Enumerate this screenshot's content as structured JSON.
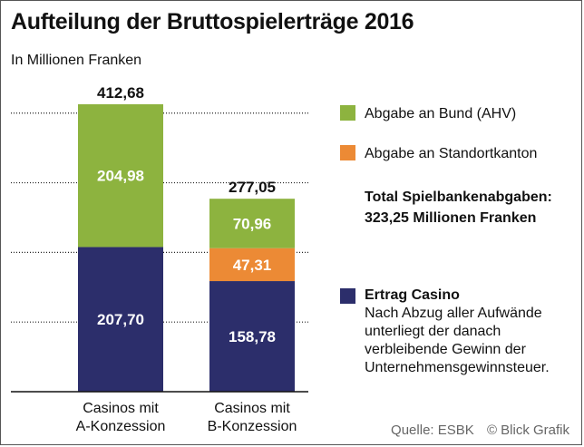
{
  "title": "Aufteilung der Bruttospielerträge 2016",
  "subtitle": "In Millionen Franken",
  "legend": {
    "bund": "Abgabe an Bund (AHV)",
    "kanton": "Abgabe an Standortkanton",
    "casino_title": "Ertrag Casino",
    "casino_desc": [
      "Nach Abzug aller Aufwände",
      "unterliegt der danach",
      "verbleibende Gewinn der",
      "Unternehmensgewinnsteuer."
    ]
  },
  "total": {
    "line1": "Total Spielbankenabgaben:",
    "line2": "323,25 Millionen Franken"
  },
  "source": {
    "text": "Quelle: ESBK",
    "credit": "© Blick Grafik"
  },
  "colors": {
    "bund": "#8db33f",
    "kanton": "#ec8a35",
    "casino": "#2c2e6b",
    "grid": "#222222"
  },
  "chart_data": {
    "type": "bar",
    "stacked": true,
    "title": "Aufteilung der Bruttospielerträge 2016",
    "ylabel": "In Millionen Franken",
    "categories": [
      "Casinos mit\nA-Konzession",
      "Casinos mit\nB-Konzession"
    ],
    "totals": [
      "412,68",
      "277,05"
    ],
    "ylim": [
      0,
      450
    ],
    "series": [
      {
        "name": "Ertrag Casino",
        "color": "#2c2e6b",
        "values": [
          207.7,
          158.78
        ],
        "labels": [
          "207,70",
          "158,78"
        ]
      },
      {
        "name": "Abgabe an Standortkanton",
        "color": "#ec8a35",
        "values": [
          0,
          47.31
        ],
        "labels": [
          "",
          "47,31"
        ]
      },
      {
        "name": "Abgabe an Bund (AHV)",
        "color": "#8db33f",
        "values": [
          204.98,
          70.96
        ],
        "labels": [
          "204,98",
          "70,96"
        ]
      }
    ]
  }
}
